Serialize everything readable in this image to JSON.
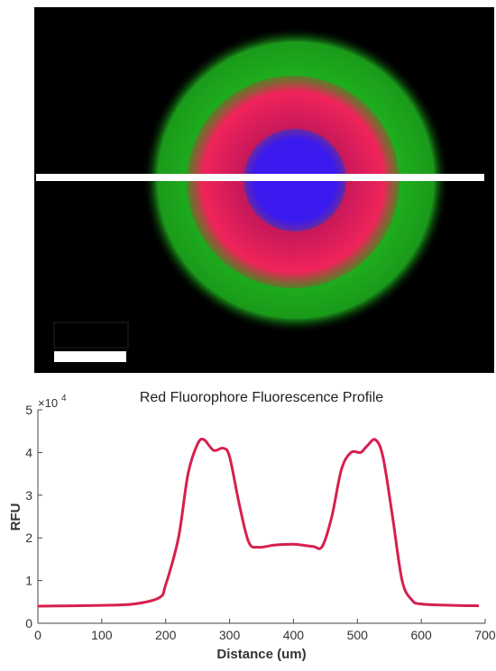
{
  "chart_data": {
    "type": "line",
    "title": "Red Fluorophore Fluorescence Profile",
    "xlabel": "Distance (um)",
    "ylabel": "RFU",
    "y_scale_label": {
      "base": "×10",
      "exponent": "4"
    },
    "x": [
      0,
      100,
      150,
      190,
      200,
      220,
      235,
      250,
      260,
      275,
      290,
      300,
      315,
      330,
      345,
      370,
      400,
      430,
      445,
      460,
      475,
      490,
      505,
      515,
      528,
      540,
      555,
      570,
      585,
      600,
      650,
      690
    ],
    "values": [
      0.4,
      0.42,
      0.45,
      0.6,
      0.9,
      2.0,
      3.5,
      4.2,
      4.3,
      4.05,
      4.1,
      3.9,
      2.8,
      1.9,
      1.78,
      1.83,
      1.85,
      1.8,
      1.8,
      2.5,
      3.6,
      4.0,
      4.0,
      4.15,
      4.3,
      3.9,
      2.5,
      1.0,
      0.55,
      0.45,
      0.42,
      0.41
    ],
    "color": "#d6204e",
    "xlim": [
      0,
      700
    ],
    "xticks": [
      0,
      100,
      200,
      300,
      400,
      500,
      600,
      700
    ],
    "ylim": [
      0,
      5
    ],
    "yticks": [
      0,
      1,
      2,
      3,
      4,
      5
    ]
  }
}
